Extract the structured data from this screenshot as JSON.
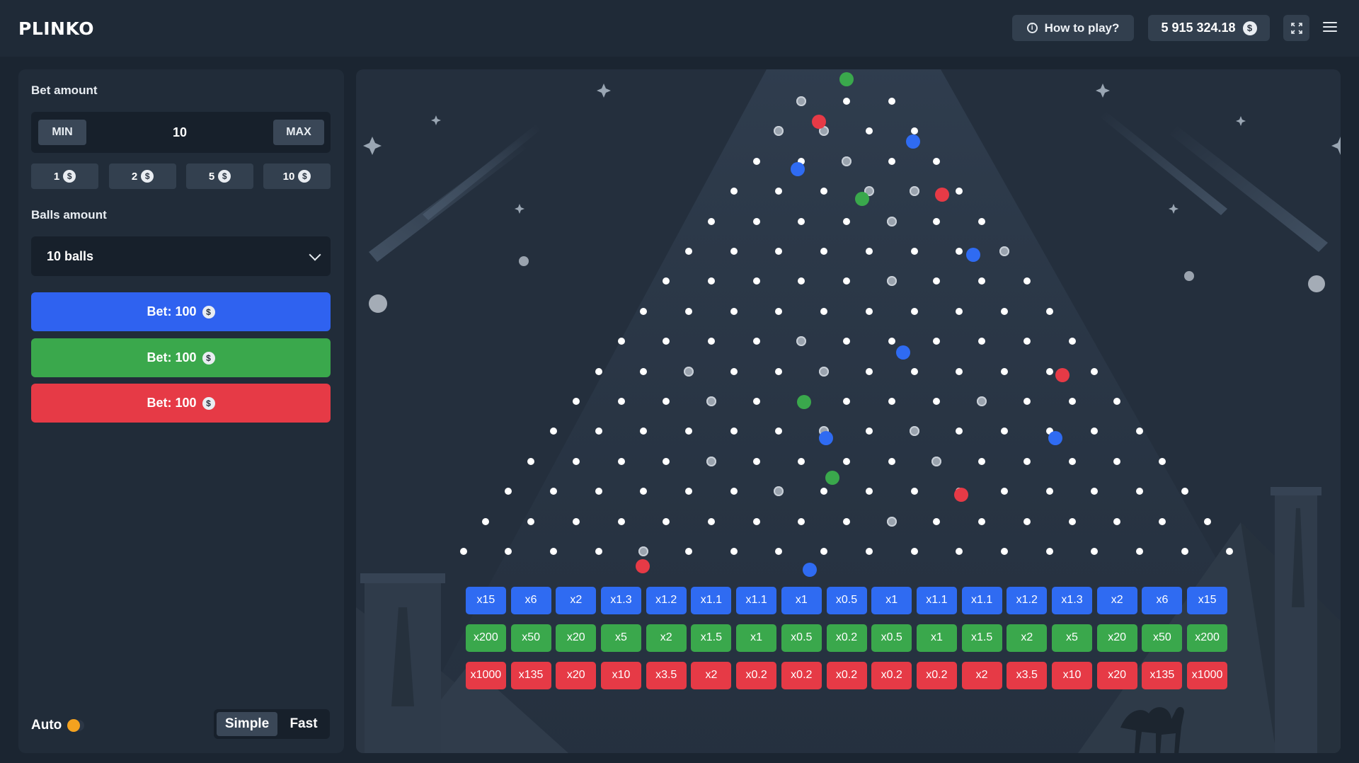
{
  "header": {
    "logo": "PLINKO",
    "how_to_play": "How to play?",
    "balance": "5 915 324.18",
    "currency_symbol": "$",
    "icons": {
      "info": "info-icon",
      "fullscreen": "fullscreen-icon",
      "menu": "hamburger-menu-icon"
    }
  },
  "panel": {
    "bet_amount_label": "Bet amount",
    "min_label": "MIN",
    "max_label": "MAX",
    "bet_value": "10",
    "quick_bets": [
      "1",
      "2",
      "5",
      "10"
    ],
    "balls_amount_label": "Balls amount",
    "balls_selected": "10 balls",
    "bet_buttons": [
      {
        "label": "Bet: 100",
        "color": "#2f62f0"
      },
      {
        "label": "Bet: 100",
        "color": "#3aa84c"
      },
      {
        "label": "Bet: 100",
        "color": "#e63a46"
      }
    ],
    "auto_label": "Auto",
    "mode_simple": "Simple",
    "mode_fast": "Fast",
    "mode_selected": "Simple"
  },
  "board": {
    "rows": 16,
    "multipliers": {
      "blue": [
        "x15",
        "x6",
        "x2",
        "x1.3",
        "x1.2",
        "x1.1",
        "x1.1",
        "x1",
        "x0.5",
        "x1",
        "x1.1",
        "x1.1",
        "x1.2",
        "x1.3",
        "x2",
        "x6",
        "x15"
      ],
      "green": [
        "x200",
        "x50",
        "x20",
        "x5",
        "x2",
        "x1.5",
        "x1",
        "x0.5",
        "x0.2",
        "x0.5",
        "x1",
        "x1.5",
        "x2",
        "x5",
        "x20",
        "x50",
        "x200"
      ],
      "red": [
        "x1000",
        "x135",
        "x20",
        "x10",
        "x3.5",
        "x2",
        "x0.2",
        "x0.2",
        "x0.2",
        "x0.2",
        "x0.2",
        "x2",
        "x3.5",
        "x10",
        "x20",
        "x135",
        "x1000"
      ]
    },
    "colors": {
      "blue": "#2f6bf2",
      "green": "#3aa84c",
      "red": "#e63a46"
    }
  }
}
